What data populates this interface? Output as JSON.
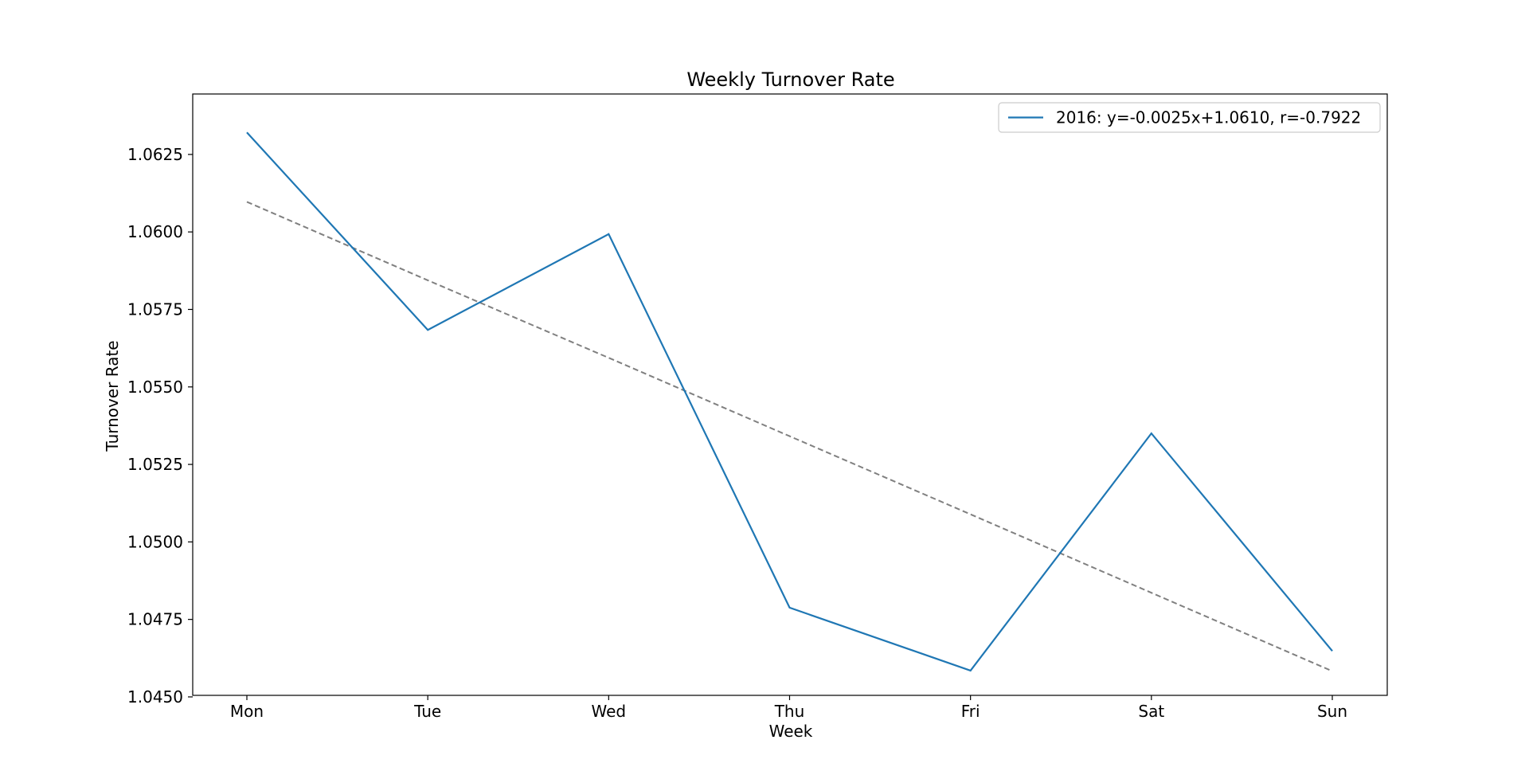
{
  "chart_data": {
    "type": "line",
    "title": "Weekly Turnover Rate",
    "xlabel": "Week",
    "ylabel": "Turnover Rate",
    "categories": [
      "Mon",
      "Tue",
      "Wed",
      "Thu",
      "Fri",
      "Sat",
      "Sun"
    ],
    "series": [
      {
        "name": "2016: y=-0.0025x+1.0610, r=-0.7922",
        "values": [
          1.06321,
          1.05684,
          1.05993,
          1.04788,
          1.04585,
          1.0535,
          1.04648
        ],
        "color": "#1f77b4",
        "style": "solid"
      }
    ],
    "trendline": {
      "values": [
        1.06097,
        1.05844,
        1.05594,
        1.05341,
        1.05089,
        1.04836,
        1.04583
      ],
      "color": "#808080",
      "style": "dashed"
    },
    "ylim": [
      1.04505,
      1.06445
    ],
    "yticks": [
      "1.0450",
      "1.0475",
      "1.0500",
      "1.0525",
      "1.0550",
      "1.0575",
      "1.0600",
      "1.0625"
    ],
    "grid": false,
    "legend_position": "top-right"
  }
}
